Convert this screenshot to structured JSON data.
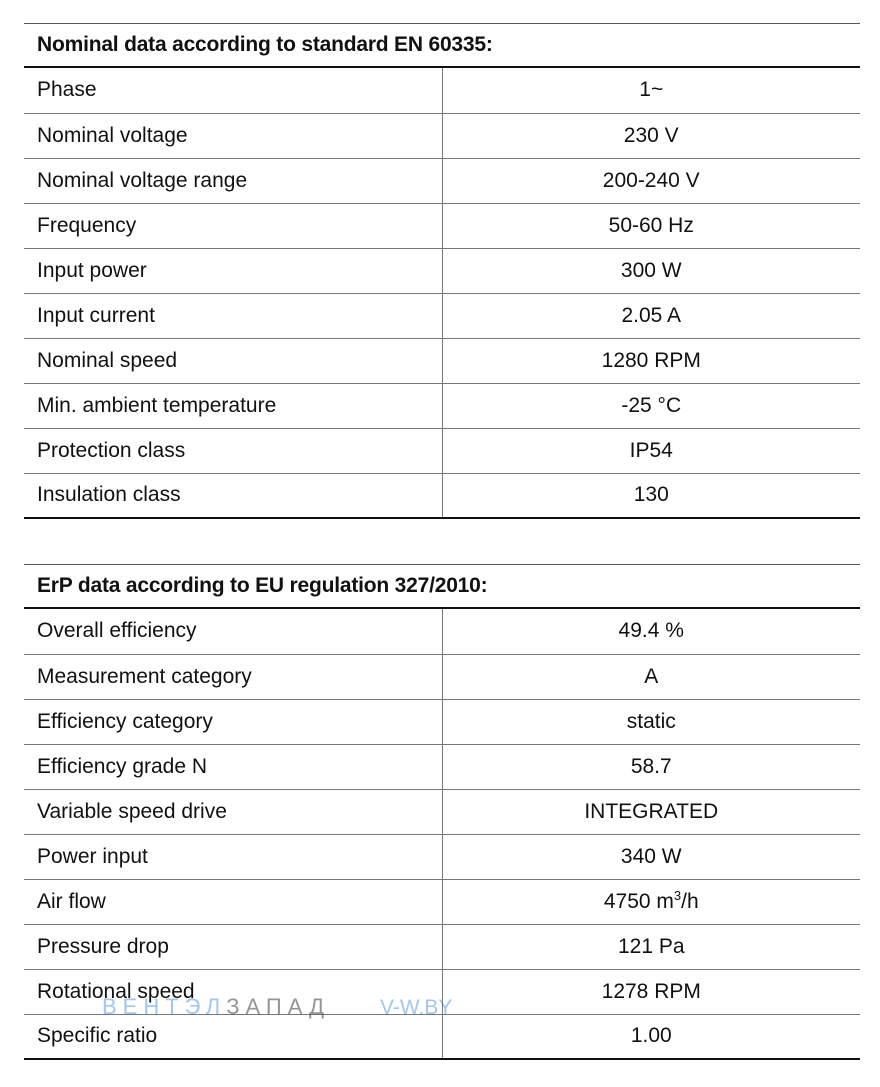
{
  "nominal": {
    "title": "Nominal data according to standard EN 60335:",
    "rows": [
      {
        "label": "Phase",
        "value": "1~"
      },
      {
        "label": "Nominal voltage",
        "value": "230 V"
      },
      {
        "label": "Nominal voltage range",
        "value": "200-240 V"
      },
      {
        "label": "Frequency",
        "value": "50-60 Hz"
      },
      {
        "label": "Input power",
        "value": "300 W"
      },
      {
        "label": "Input current",
        "value": "2.05 A"
      },
      {
        "label": "Nominal speed",
        "value": "1280 RPM"
      },
      {
        "label": "Min. ambient temperature",
        "value": "-25 °C"
      },
      {
        "label": "Protection class",
        "value": "IP54"
      },
      {
        "label": "Insulation class",
        "value": "130"
      }
    ]
  },
  "erp": {
    "title": "ErP data according to EU regulation 327/2010:",
    "rows": [
      {
        "label": "Overall efficiency",
        "value": "49.4 %"
      },
      {
        "label": "Measurement category",
        "value": "A"
      },
      {
        "label": "Efficiency category",
        "value": "static"
      },
      {
        "label": "Efficiency grade N",
        "value": "58.7"
      },
      {
        "label": "Variable speed drive",
        "value": "INTEGRATED"
      },
      {
        "label": "Power input",
        "value": "340 W"
      },
      {
        "label": "Air flow",
        "value_pre": "4750 m",
        "value_sup": "3",
        "value_post": "/h"
      },
      {
        "label": "Pressure drop",
        "value": "121 Pa"
      },
      {
        "label": "Rotational speed",
        "value": "1278 RPM"
      },
      {
        "label": "Specific ratio",
        "value": "1.00"
      }
    ]
  },
  "watermark": {
    "part1": "ВЕНТЭЛ",
    "part2": "ЗАПАД",
    "part3": "V-W.BY"
  }
}
